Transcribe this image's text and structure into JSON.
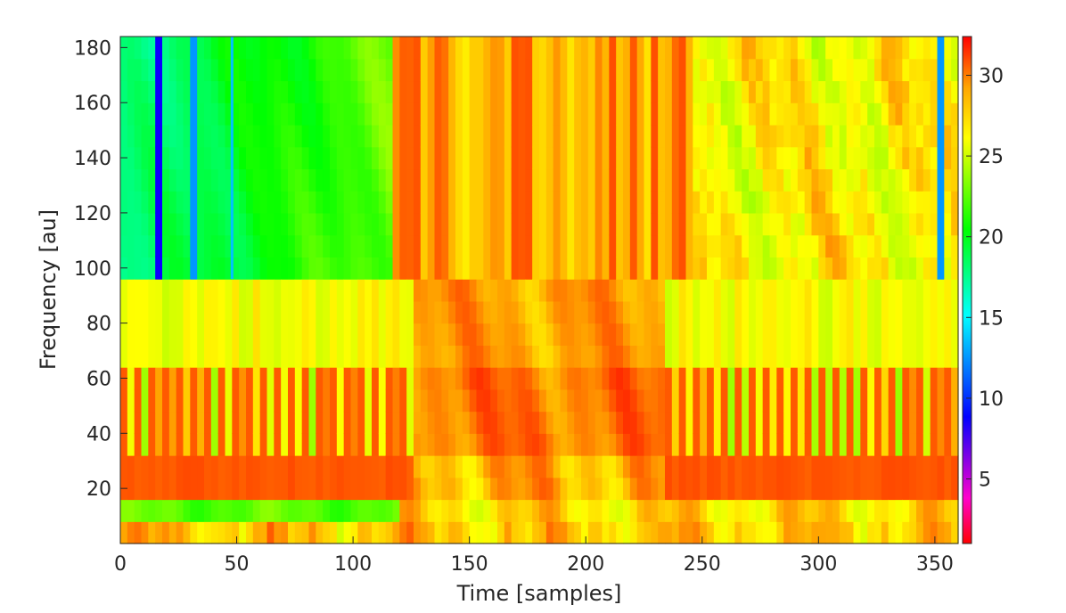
{
  "chart_data": {
    "type": "heatmap",
    "title": "",
    "xlabel": "Time [samples]",
    "ylabel": "Frequency [au]",
    "xlim": [
      0,
      360
    ],
    "ylim": [
      0,
      184
    ],
    "xticks": [
      0,
      50,
      100,
      150,
      200,
      250,
      300,
      350
    ],
    "yticks": [
      20,
      40,
      60,
      80,
      100,
      120,
      140,
      160,
      180
    ],
    "colorbar": {
      "range": [
        1,
        32.4
      ],
      "ticks": [
        5,
        10,
        15,
        20,
        25,
        30
      ],
      "colormap": "hsv (magenta-blue-cyan-green-yellow-orange-red)"
    },
    "frequency_bands": [
      {
        "band": "0-8",
        "typical_value": 27
      },
      {
        "band": "8-16",
        "typical_value": 24
      },
      {
        "band": "16-32",
        "typical_value": 30.5
      },
      {
        "band": "32-64",
        "typical_value": 30
      },
      {
        "band": "64-96",
        "typical_value": 26
      },
      {
        "band": "96-184",
        "typical_value": 23
      }
    ],
    "time_segments": [
      {
        "range": [
          0,
          117
        ],
        "upper_band_value": 18.5,
        "note": "cyan to green region"
      },
      {
        "range": [
          117,
          245
        ],
        "upper_band_value": 29,
        "note": "orange/yellow striped region"
      },
      {
        "range": [
          245,
          360
        ],
        "upper_band_value": 26.5,
        "note": "yellow region"
      }
    ],
    "dark_columns": [
      {
        "time": 16,
        "value": 7
      },
      {
        "time": 32,
        "value": 11
      },
      {
        "time": 48,
        "value": 12
      },
      {
        "time": 353,
        "value": 11
      }
    ],
    "grid": false
  }
}
